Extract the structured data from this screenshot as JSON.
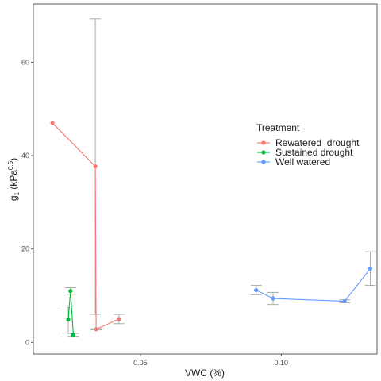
{
  "chart_data": {
    "type": "line",
    "xlabel": "VWC (%)",
    "ylabel": {
      "base": "g",
      "sub": "1",
      "unit_open": " (kPa",
      "sup": "0.5",
      "unit_close": ")"
    },
    "xlim": [
      0.012,
      0.134
    ],
    "ylim": [
      -2.5,
      72.5
    ],
    "x_ticks": [
      {
        "value": 0.05,
        "label": "0.05"
      },
      {
        "value": 0.1,
        "label": "0.10"
      }
    ],
    "y_ticks": [
      {
        "value": 0,
        "label": "0"
      },
      {
        "value": 20,
        "label": "20"
      },
      {
        "value": 40,
        "label": "40"
      },
      {
        "value": 60,
        "label": "60"
      }
    ],
    "grid": false,
    "legend": {
      "title": "Treatment",
      "position": "right"
    },
    "error_bar_color": "#aaaaaa",
    "series": [
      {
        "name": "Rewatered  drought",
        "color": "#f8766d",
        "points": [
          {
            "x": 0.0188,
            "y": 47.0
          },
          {
            "x": 0.034,
            "y": 37.7,
            "ylo": 6.0,
            "yhi": 69.3
          },
          {
            "x": 0.0343,
            "y": 2.8,
            "ylo": 2.7,
            "yhi": 2.9
          },
          {
            "x": 0.0424,
            "y": 5.0,
            "ylo": 4.0,
            "yhi": 6.0
          }
        ]
      },
      {
        "name": "Sustained drought",
        "color": "#00ba38",
        "points": [
          {
            "x": 0.0244,
            "y": 4.9,
            "ylo": 2.0,
            "yhi": 7.8
          },
          {
            "x": 0.0252,
            "y": 11.0,
            "ylo": 10.3,
            "yhi": 11.7
          },
          {
            "x": 0.0262,
            "y": 1.6,
            "ylo": 1.3,
            "yhi": 1.9
          }
        ]
      },
      {
        "name": "Well watered",
        "color": "#619cff",
        "points": [
          {
            "x": 0.0911,
            "y": 11.2,
            "ylo": 10.2,
            "yhi": 12.2
          },
          {
            "x": 0.0971,
            "y": 9.4,
            "ylo": 8.1,
            "yhi": 10.7
          },
          {
            "x": 0.1225,
            "y": 8.8,
            "ylo": 8.5,
            "yhi": 9.1
          },
          {
            "x": 0.1316,
            "y": 15.8,
            "ylo": 12.2,
            "yhi": 19.4
          }
        ]
      }
    ]
  }
}
